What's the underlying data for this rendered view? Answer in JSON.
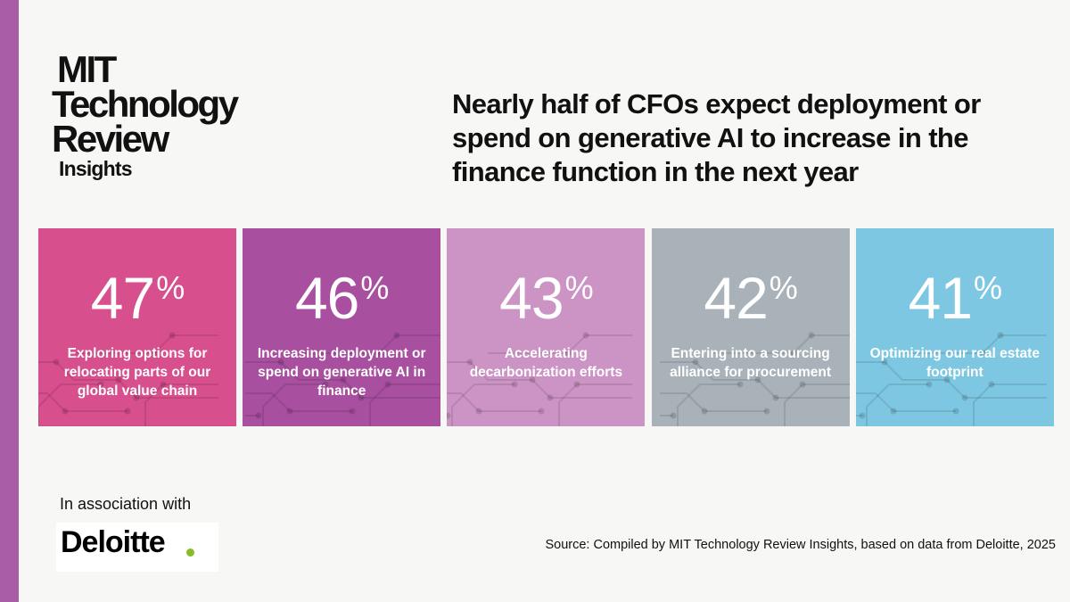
{
  "brand": {
    "line1": "MIT",
    "line2": "Technology",
    "line3": "Review",
    "line4": "Insights",
    "stripe_color": "#a95ca6"
  },
  "headline": "Nearly half of CFOs expect deployment or spend on generative AI to increase in the finance function in the next year",
  "chart_data": {
    "type": "bar",
    "unit": "%",
    "categories": [
      "Exploring options for relocating parts of our global value chain",
      "Increasing deployment or spend on generative AI in finance",
      "Accelerating decarbonization efforts",
      "Entering into a sourcing alliance for procurement",
      "Optimizing our real estate footprint"
    ],
    "values": [
      47,
      46,
      43,
      42,
      41
    ],
    "colors": [
      "#d74f8c",
      "#a84f9f",
      "#cc94c4",
      "#a8b2b8",
      "#7ec7e2"
    ],
    "title": "Nearly half of CFOs expect deployment or spend on generative AI to increase in the finance function in the next year"
  },
  "footer": {
    "association": "In association with",
    "sponsor": "Deloitte",
    "sponsor_dot_color": "#86bc25",
    "source": "Source: Compiled by MIT Technology Review Insights, based on data from Deloitte, 2025"
  }
}
